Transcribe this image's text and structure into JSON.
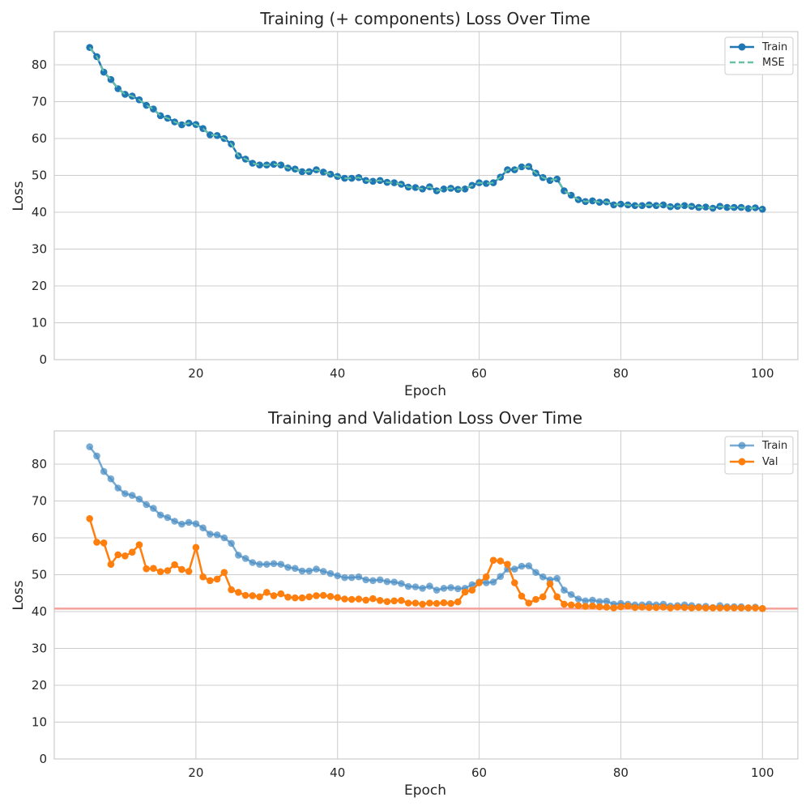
{
  "chart_data": [
    {
      "type": "line",
      "title": "Training (+ components) Loss Over Time",
      "xlabel": "Epoch",
      "ylabel": "Loss",
      "xlim": [
        0,
        105
      ],
      "ylim": [
        0,
        89
      ],
      "xticks": [
        20,
        40,
        60,
        80,
        100
      ],
      "yticks": [
        0,
        10,
        20,
        30,
        40,
        50,
        60,
        70,
        80
      ],
      "grid": true,
      "legend_position": "top-right",
      "x": [
        5,
        6,
        7,
        8,
        9,
        10,
        11,
        12,
        13,
        14,
        15,
        16,
        17,
        18,
        19,
        20,
        21,
        22,
        23,
        24,
        25,
        26,
        27,
        28,
        29,
        30,
        31,
        32,
        33,
        34,
        35,
        36,
        37,
        38,
        39,
        40,
        41,
        42,
        43,
        44,
        45,
        46,
        47,
        48,
        49,
        50,
        51,
        52,
        53,
        54,
        55,
        56,
        57,
        58,
        59,
        60,
        61,
        62,
        63,
        64,
        65,
        66,
        67,
        68,
        69,
        70,
        71,
        72,
        73,
        74,
        75,
        76,
        77,
        78,
        79,
        80,
        81,
        82,
        83,
        84,
        85,
        86,
        87,
        88,
        89,
        90,
        91,
        92,
        93,
        94,
        95,
        96,
        97,
        98,
        99,
        100
      ],
      "series": [
        {
          "name": "Train",
          "style": "solid-markers",
          "color": "#1f77b4",
          "values": [
            84.7,
            82.2,
            78.0,
            76.0,
            73.5,
            72.0,
            71.5,
            70.5,
            69.0,
            68.0,
            66.2,
            65.5,
            64.5,
            63.7,
            64.2,
            63.8,
            62.7,
            61.0,
            60.8,
            60.0,
            58.5,
            55.3,
            54.4,
            53.3,
            52.8,
            52.8,
            53.0,
            52.8,
            52.0,
            51.7,
            51.0,
            51.0,
            51.5,
            50.9,
            50.3,
            49.7,
            49.2,
            49.2,
            49.4,
            48.6,
            48.4,
            48.6,
            48.1,
            48.0,
            47.6,
            46.8,
            46.7,
            46.3,
            46.9,
            45.8,
            46.3,
            46.5,
            46.2,
            46.3,
            47.3,
            48.0,
            47.8,
            48.0,
            49.5,
            51.5,
            51.5,
            52.3,
            52.4,
            50.6,
            49.4,
            48.6,
            49.0,
            45.8,
            44.6,
            43.4,
            42.9,
            43.1,
            42.7,
            42.8,
            42.0,
            42.2,
            42.0,
            41.8,
            41.8,
            42.0,
            41.8,
            42.0,
            41.5,
            41.6,
            41.8,
            41.6,
            41.3,
            41.4,
            41.1,
            41.6,
            41.3,
            41.3,
            41.3,
            41.0,
            41.2,
            40.8
          ]
        },
        {
          "name": "MSE",
          "style": "dashed",
          "color": "#66c2a5",
          "values": [
            84.7,
            82.2,
            78.0,
            76.0,
            73.5,
            72.0,
            71.5,
            70.5,
            69.0,
            68.0,
            66.2,
            65.5,
            64.5,
            63.7,
            64.2,
            63.8,
            62.7,
            61.0,
            60.8,
            60.0,
            58.5,
            55.3,
            54.4,
            53.3,
            52.8,
            52.8,
            53.0,
            52.8,
            52.0,
            51.7,
            51.0,
            51.0,
            51.5,
            50.9,
            50.3,
            49.7,
            49.2,
            49.2,
            49.4,
            48.6,
            48.4,
            48.6,
            48.1,
            48.0,
            47.6,
            46.8,
            46.7,
            46.3,
            46.9,
            45.8,
            46.3,
            46.5,
            46.2,
            46.3,
            47.3,
            48.0,
            47.8,
            48.0,
            49.5,
            51.5,
            51.5,
            52.3,
            52.4,
            50.6,
            49.4,
            48.6,
            49.0,
            45.8,
            44.6,
            43.4,
            42.9,
            43.1,
            42.7,
            42.8,
            42.0,
            42.2,
            42.0,
            41.8,
            41.8,
            42.0,
            41.8,
            42.0,
            41.5,
            41.6,
            41.8,
            41.6,
            41.3,
            41.4,
            41.1,
            41.6,
            41.3,
            41.3,
            41.3,
            41.0,
            41.2,
            40.8
          ]
        }
      ]
    },
    {
      "type": "line",
      "title": "Training and Validation Loss Over Time",
      "xlabel": "Epoch",
      "ylabel": "Loss",
      "xlim": [
        0,
        105
      ],
      "ylim": [
        0,
        89
      ],
      "xticks": [
        20,
        40,
        60,
        80,
        100
      ],
      "yticks": [
        0,
        10,
        20,
        30,
        40,
        50,
        60,
        70,
        80
      ],
      "grid": true,
      "legend_position": "top-right",
      "hline": {
        "y": 40.8,
        "color": "#f4a09a"
      },
      "x": [
        5,
        6,
        7,
        8,
        9,
        10,
        11,
        12,
        13,
        14,
        15,
        16,
        17,
        18,
        19,
        20,
        21,
        22,
        23,
        24,
        25,
        26,
        27,
        28,
        29,
        30,
        31,
        32,
        33,
        34,
        35,
        36,
        37,
        38,
        39,
        40,
        41,
        42,
        43,
        44,
        45,
        46,
        47,
        48,
        49,
        50,
        51,
        52,
        53,
        54,
        55,
        56,
        57,
        58,
        59,
        60,
        61,
        62,
        63,
        64,
        65,
        66,
        67,
        68,
        69,
        70,
        71,
        72,
        73,
        74,
        75,
        76,
        77,
        78,
        79,
        80,
        81,
        82,
        83,
        84,
        85,
        86,
        87,
        88,
        89,
        90,
        91,
        92,
        93,
        94,
        95,
        96,
        97,
        98,
        99,
        100
      ],
      "series": [
        {
          "name": "Train",
          "style": "faded-markers",
          "color": "#4c8fc4",
          "values": [
            84.7,
            82.2,
            78.0,
            76.0,
            73.5,
            72.0,
            71.5,
            70.5,
            69.0,
            68.0,
            66.2,
            65.5,
            64.5,
            63.7,
            64.2,
            63.8,
            62.7,
            61.0,
            60.8,
            60.0,
            58.5,
            55.3,
            54.4,
            53.3,
            52.8,
            52.8,
            53.0,
            52.8,
            52.0,
            51.7,
            51.0,
            51.0,
            51.5,
            50.9,
            50.3,
            49.7,
            49.2,
            49.2,
            49.4,
            48.6,
            48.4,
            48.6,
            48.1,
            48.0,
            47.6,
            46.8,
            46.7,
            46.3,
            46.9,
            45.8,
            46.3,
            46.5,
            46.2,
            46.3,
            47.3,
            48.0,
            47.8,
            48.0,
            49.5,
            51.5,
            51.5,
            52.3,
            52.4,
            50.6,
            49.4,
            48.6,
            49.0,
            45.8,
            44.6,
            43.4,
            42.9,
            43.1,
            42.7,
            42.8,
            42.0,
            42.2,
            42.0,
            41.8,
            41.8,
            42.0,
            41.8,
            42.0,
            41.5,
            41.6,
            41.8,
            41.6,
            41.3,
            41.4,
            41.1,
            41.6,
            41.3,
            41.3,
            41.3,
            41.0,
            41.2,
            40.8
          ]
        },
        {
          "name": "Val",
          "style": "solid-markers",
          "color": "#ff7f0e",
          "values": [
            65.2,
            58.8,
            58.6,
            52.8,
            55.4,
            55.1,
            56.1,
            58.1,
            51.6,
            51.7,
            50.8,
            51.1,
            52.7,
            51.4,
            50.9,
            57.4,
            49.4,
            48.4,
            48.8,
            50.6,
            45.9,
            45.2,
            44.4,
            44.3,
            44.0,
            45.2,
            44.3,
            44.8,
            43.9,
            43.7,
            43.7,
            44.0,
            44.3,
            44.4,
            44.1,
            43.8,
            43.4,
            43.3,
            43.4,
            43.1,
            43.5,
            43.0,
            42.7,
            42.9,
            43.0,
            42.3,
            42.3,
            42.0,
            42.3,
            42.2,
            42.4,
            42.2,
            42.6,
            45.3,
            45.8,
            47.8,
            49.4,
            53.9,
            53.7,
            52.8,
            47.8,
            44.2,
            42.3,
            43.3,
            44.0,
            47.5,
            44.0,
            42.0,
            41.8,
            41.6,
            41.4,
            41.5,
            41.3,
            41.2,
            41.0,
            41.3,
            41.5,
            41.1,
            41.2,
            41.1,
            41.1,
            41.2,
            41.0,
            41.2,
            41.1,
            41.0,
            41.1,
            41.0,
            41.0,
            41.0,
            41.0,
            41.0,
            41.0,
            41.0,
            41.0,
            40.8
          ]
        }
      ]
    }
  ]
}
